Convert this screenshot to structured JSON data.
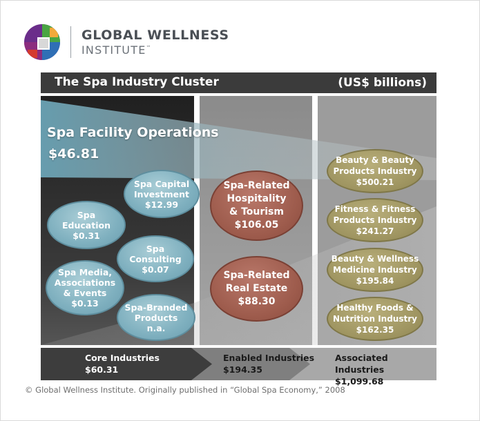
{
  "brand": {
    "line1": "GLOBAL WELLNESS",
    "line2": "INSTITUTE",
    "trademark": "™",
    "logo_colors": [
      "#6a2d8a",
      "#2f6fb5",
      "#4aa543",
      "#d43a2f",
      "#f2a93b"
    ]
  },
  "diagram": {
    "title": "The Spa Industry Cluster",
    "units": "(US$ billions)",
    "spa_facility_operations": {
      "label": "Spa Facility Operations",
      "value": "$46.81"
    },
    "core": [
      {
        "lines": [
          "Spa Capital",
          "Investment",
          "$12.99"
        ]
      },
      {
        "lines": [
          "Spa",
          "Education",
          "$0.31"
        ]
      },
      {
        "lines": [
          "Spa",
          "Consulting",
          "$0.07"
        ]
      },
      {
        "lines": [
          "Spa Media,",
          "Associations",
          "& Events",
          "$0.13"
        ]
      },
      {
        "lines": [
          "Spa-Branded",
          "Products",
          "n.a."
        ]
      }
    ],
    "enabled": [
      {
        "lines": [
          "Spa-Related",
          "Hospitality",
          "& Tourism",
          "$106.05"
        ]
      },
      {
        "lines": [
          "Spa-Related",
          "Real Estate",
          "$88.30"
        ]
      }
    ],
    "associated": [
      {
        "lines": [
          "Beauty & Beauty",
          "Products Industry",
          "$500.21"
        ]
      },
      {
        "lines": [
          "Fitness & Fitness",
          "Products Industry",
          "$241.27"
        ]
      },
      {
        "lines": [
          "Beauty & Wellness",
          "Medicine Industry",
          "$195.84"
        ]
      },
      {
        "lines": [
          "Healthy Foods &",
          "Nutrition Industry",
          "$162.35"
        ]
      }
    ],
    "totals": [
      {
        "label": "Core Industries",
        "value": "$60.31"
      },
      {
        "label": "Enabled Industries",
        "value": "$194.35"
      },
      {
        "label": "Associated Industries",
        "value": "$1,099.68"
      }
    ],
    "colors": {
      "core_ellipse": "#7fb0bf",
      "enabled_ellipse": "#9d5b4c",
      "associated_ellipse": "#9f9561"
    }
  },
  "footer": "© Global Wellness Institute. Originally published in “Global Spa Economy,” 2008"
}
